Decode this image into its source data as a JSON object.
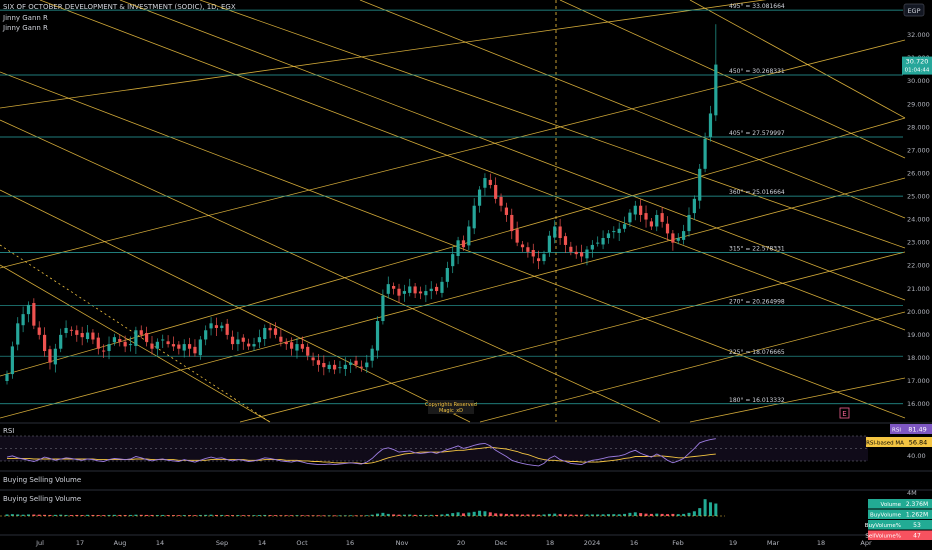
{
  "header": {
    "symbol_line": "SIX OF OCTOBER DEVELOPMENT & INVESTMENT (SODIC), 1D, EGX",
    "indicator_1": "Jinny Gann R",
    "indicator_2": "Jinny Gann R"
  },
  "currency_badge": "EGP",
  "last_price": "30.720",
  "countdown": "01:04:44",
  "watermark": {
    "line1": "Copyrights Reserved",
    "line2": "Magic_xD"
  },
  "event_badge": "E",
  "colors": {
    "up": "#26a69a",
    "down": "#ef5350",
    "gann_lines": "#f4c542",
    "levels": "#2aa6a4",
    "rsi": "#9c7ce0",
    "rsi_ma": "#f4c542",
    "vol_up": "#22ab94",
    "vol_down": "#f7525f"
  },
  "chart_data": [
    {
      "type": "candlestick",
      "title": "SIX OF OCTOBER DEVELOPMENT & INVESTMENT (SODIC), 1D, EGX",
      "x_tick_labels": [
        "Jul",
        "17",
        "Aug",
        "14",
        "Sep",
        "14",
        "Oct",
        "16",
        "Nov",
        "20",
        "Dec",
        "18",
        "2024",
        "16",
        "Feb",
        "19",
        "Mar",
        "18",
        "Apr"
      ],
      "y_tick_labels": [
        "16.000",
        "17.000",
        "18.000",
        "19.000",
        "20.000",
        "21.000",
        "22.000",
        "23.000",
        "24.000",
        "25.000",
        "26.000",
        "27.000",
        "28.000",
        "29.000",
        "30.000",
        "31.000",
        "32.000"
      ],
      "ylim": [
        15.4,
        33.6
      ],
      "gann_levels": [
        {
          "label": "495° = 33.081664",
          "value": 33.081664
        },
        {
          "label": "450° = 30.268331",
          "value": 30.268331
        },
        {
          "label": "405° = 27.579997",
          "value": 27.579997
        },
        {
          "label": "360° = 25.016664",
          "value": 25.016664
        },
        {
          "label": "315° = 22.578331",
          "value": 22.578331
        },
        {
          "label": "270° = 20.264998",
          "value": 20.264998
        },
        {
          "label": "225° = 18.076665",
          "value": 18.076665
        },
        {
          "label": "180° = 16.013332",
          "value": 16.013332
        }
      ],
      "last": 30.72,
      "closes": [
        17.3,
        18.5,
        19.5,
        19.9,
        20.3,
        19.4,
        19.0,
        18.3,
        17.8,
        18.4,
        19.0,
        19.3,
        19.2,
        19.0,
        18.9,
        19.1,
        18.8,
        18.4,
        18.3,
        18.6,
        18.9,
        18.7,
        18.5,
        18.6,
        19.2,
        19.0,
        18.7,
        18.4,
        18.7,
        18.8,
        18.6,
        18.5,
        18.4,
        18.6,
        18.4,
        18.2,
        18.8,
        19.2,
        19.5,
        19.3,
        19.4,
        19.0,
        18.6,
        18.8,
        18.7,
        18.5,
        18.6,
        18.9,
        19.3,
        19.2,
        19.0,
        18.7,
        18.6,
        18.4,
        18.6,
        18.4,
        18.1,
        17.9,
        17.7,
        17.6,
        17.7,
        17.5,
        17.6,
        17.7,
        17.8,
        17.7,
        17.6,
        17.8,
        18.4,
        19.6,
        20.7,
        21.2,
        21.0,
        20.7,
        20.9,
        21.1,
        20.8,
        20.8,
        20.9,
        21.0,
        20.9,
        21.3,
        21.9,
        22.5,
        23.1,
        22.8,
        23.7,
        24.6,
        25.3,
        25.8,
        25.5,
        24.9,
        24.6,
        24.2,
        23.5,
        23.0,
        22.8,
        22.6,
        22.4,
        22.2,
        22.5,
        23.3,
        23.7,
        23.2,
        22.9,
        22.6,
        22.5,
        22.4,
        22.7,
        22.9,
        23.0,
        23.2,
        23.4,
        23.5,
        23.6,
        23.8,
        24.3,
        24.6,
        24.2,
        24.0,
        23.7,
        24.2,
        23.9,
        23.4,
        23.0,
        23.2,
        23.5,
        24.2,
        24.9,
        26.2,
        27.5,
        28.6,
        30.72
      ]
    },
    {
      "type": "line",
      "title": "RSI",
      "series": [
        {
          "name": "RSI",
          "last": "81.49"
        },
        {
          "name": "RSI-based MA",
          "last": "56.84"
        }
      ],
      "y_tick_labels": [
        "40.00"
      ],
      "values": [
        52,
        54,
        51,
        49,
        47,
        45,
        48,
        52,
        50,
        47,
        49,
        51,
        50,
        48,
        47,
        49,
        48,
        46,
        45,
        48,
        50,
        49,
        48,
        49,
        53,
        51,
        48,
        46,
        48,
        49,
        47,
        46,
        45,
        48,
        46,
        44,
        47,
        50,
        52,
        50,
        51,
        48,
        46,
        48,
        47,
        45,
        46,
        48,
        51,
        50,
        48,
        46,
        45,
        44,
        46,
        44,
        42,
        41,
        40,
        40,
        41,
        40,
        41,
        42,
        43,
        42,
        41,
        44,
        50,
        58,
        65,
        67,
        64,
        60,
        61,
        62,
        59,
        58,
        59,
        60,
        58,
        61,
        64,
        67,
        70,
        66,
        68,
        71,
        73,
        74,
        70,
        63,
        58,
        53,
        47,
        44,
        42,
        40,
        39,
        38,
        42,
        50,
        54,
        48,
        45,
        42,
        41,
        40,
        44,
        47,
        48,
        50,
        52,
        53,
        54,
        56,
        60,
        63,
        58,
        55,
        52,
        57,
        53,
        47,
        43,
        46,
        50,
        58,
        66,
        75,
        78,
        80,
        81.49
      ],
      "ma_values": [
        50,
        50,
        50,
        50,
        50,
        49,
        49,
        49,
        49,
        49,
        49,
        49,
        49,
        49,
        49,
        49,
        49,
        48,
        48,
        48,
        48,
        48,
        48,
        48,
        49,
        49,
        49,
        48,
        48,
        48,
        48,
        48,
        47,
        47,
        47,
        47,
        47,
        47,
        48,
        48,
        48,
        48,
        48,
        48,
        48,
        47,
        47,
        47,
        48,
        48,
        48,
        48,
        47,
        47,
        47,
        46,
        46,
        45,
        45,
        44,
        44,
        43,
        43,
        43,
        43,
        43,
        42,
        42,
        43,
        45,
        48,
        51,
        53,
        55,
        57,
        58,
        59,
        60,
        60,
        60,
        60,
        60,
        61,
        62,
        63,
        63,
        64,
        65,
        66,
        67,
        68,
        67,
        66,
        65,
        63,
        61,
        58,
        56,
        53,
        50,
        48,
        47,
        47,
        46,
        46,
        45,
        45,
        44,
        44,
        44,
        44,
        45,
        46,
        47,
        48,
        50,
        51,
        53,
        53,
        53,
        53,
        54,
        54,
        53,
        52,
        51,
        51,
        52,
        53,
        54,
        55,
        56,
        56.84
      ]
    },
    {
      "type": "bar",
      "title": "Buying Selling Volume",
      "legend": [
        {
          "name": "Volume",
          "value": "2.376M"
        },
        {
          "name": "BuyVolume",
          "value": "1.262M"
        },
        {
          "name": "BuyVolume%",
          "value": "53"
        },
        {
          "name": "SellVolume%",
          "value": "47"
        }
      ],
      "y_tick_labels": [
        "4M"
      ],
      "volumes": [
        0.3,
        0.35,
        0.3,
        0.25,
        0.3,
        0.28,
        0.26,
        0.22,
        0.2,
        0.22,
        0.25,
        0.2,
        0.18,
        0.2,
        0.18,
        0.22,
        0.2,
        0.18,
        0.17,
        0.2,
        0.22,
        0.2,
        0.18,
        0.2,
        0.25,
        0.22,
        0.2,
        0.2,
        0.18,
        0.2,
        0.18,
        0.17,
        0.16,
        0.18,
        0.17,
        0.16,
        0.2,
        0.22,
        0.25,
        0.2,
        0.2,
        0.18,
        0.17,
        0.18,
        0.16,
        0.15,
        0.16,
        0.18,
        0.2,
        0.18,
        0.16,
        0.15,
        0.15,
        0.15,
        0.16,
        0.15,
        0.14,
        0.14,
        0.13,
        0.13,
        0.13,
        0.12,
        0.13,
        0.13,
        0.14,
        0.13,
        0.12,
        0.15,
        0.25,
        0.45,
        0.6,
        0.4,
        0.3,
        0.25,
        0.25,
        0.28,
        0.22,
        0.2,
        0.2,
        0.22,
        0.2,
        0.3,
        0.4,
        0.55,
        0.7,
        0.5,
        0.65,
        0.8,
        1.0,
        0.9,
        0.7,
        0.5,
        0.45,
        0.4,
        0.35,
        0.3,
        0.28,
        0.3,
        0.28,
        0.25,
        0.3,
        0.4,
        0.45,
        0.35,
        0.3,
        0.28,
        0.25,
        0.25,
        0.3,
        0.3,
        0.3,
        0.32,
        0.35,
        0.35,
        0.33,
        0.4,
        0.6,
        0.7,
        0.55,
        0.45,
        0.4,
        0.45,
        0.4,
        0.35,
        0.4,
        0.35,
        0.4,
        0.6,
        0.9,
        1.5,
        3.2,
        2.6,
        2.376
      ]
    }
  ]
}
